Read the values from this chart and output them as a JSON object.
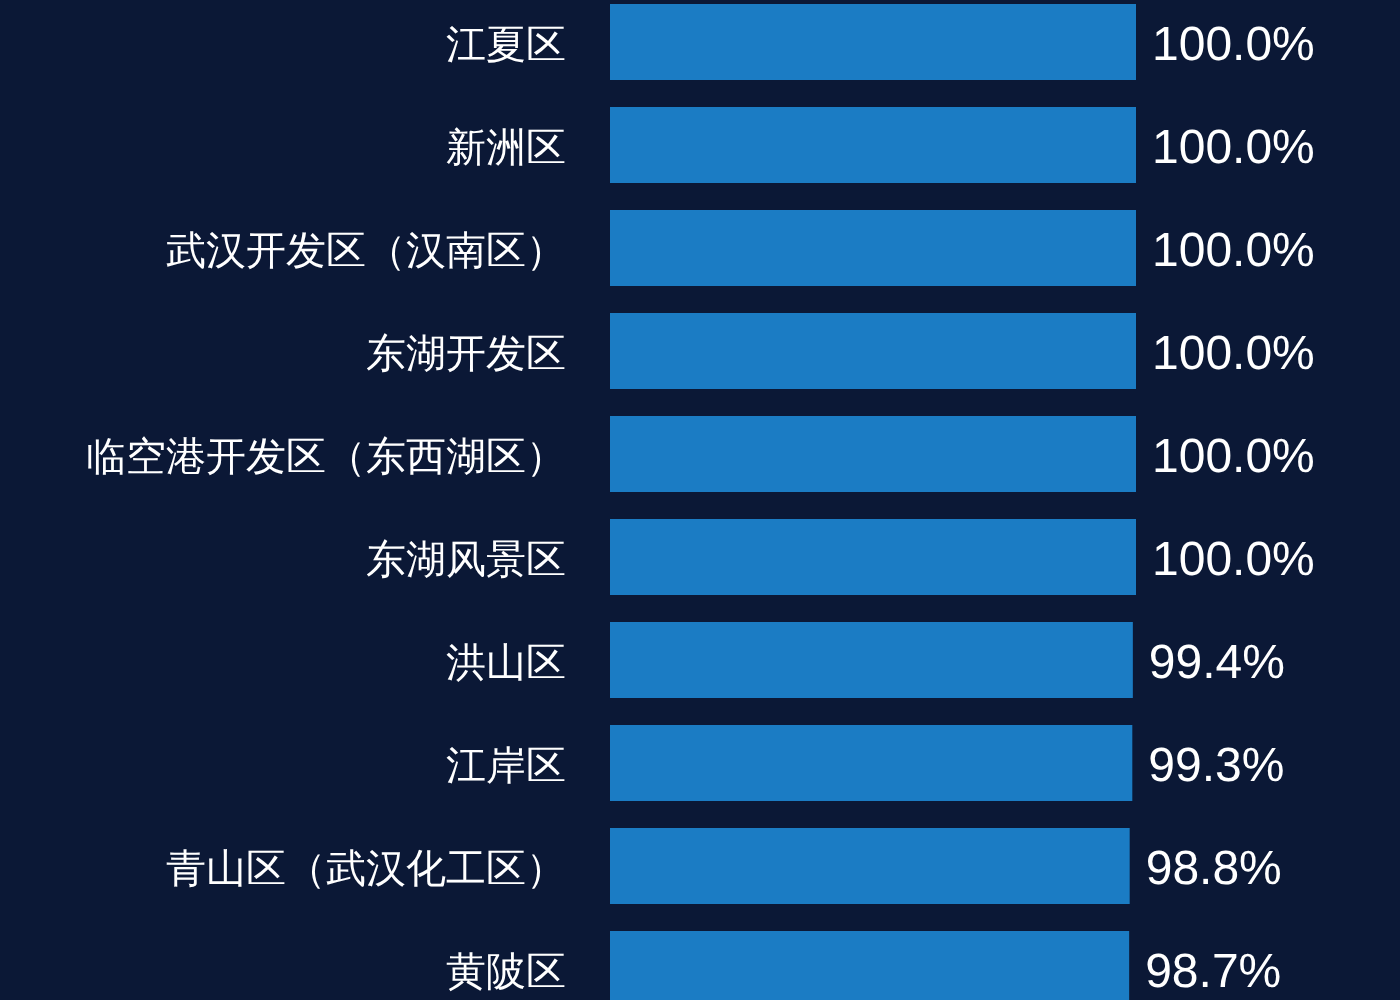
{
  "chart_data": {
    "type": "bar",
    "orientation": "horizontal",
    "categories": [
      "江夏区",
      "新洲区",
      "武汉开发区（汉南区）",
      "东湖开发区",
      "临空港开发区（东西湖区）",
      "东湖风景区",
      "洪山区",
      "江岸区",
      "青山区（武汉化工区）",
      "黄陂区"
    ],
    "values": [
      100.0,
      100.0,
      100.0,
      100.0,
      100.0,
      100.0,
      99.4,
      99.3,
      98.8,
      98.7
    ],
    "value_labels": [
      "100.0%",
      "100.0%",
      "100.0%",
      "100.0%",
      "100.0%",
      "100.0%",
      "99.4%",
      "99.3%",
      "98.8%",
      "98.7%"
    ],
    "color": "#1b7cc4"
  }
}
